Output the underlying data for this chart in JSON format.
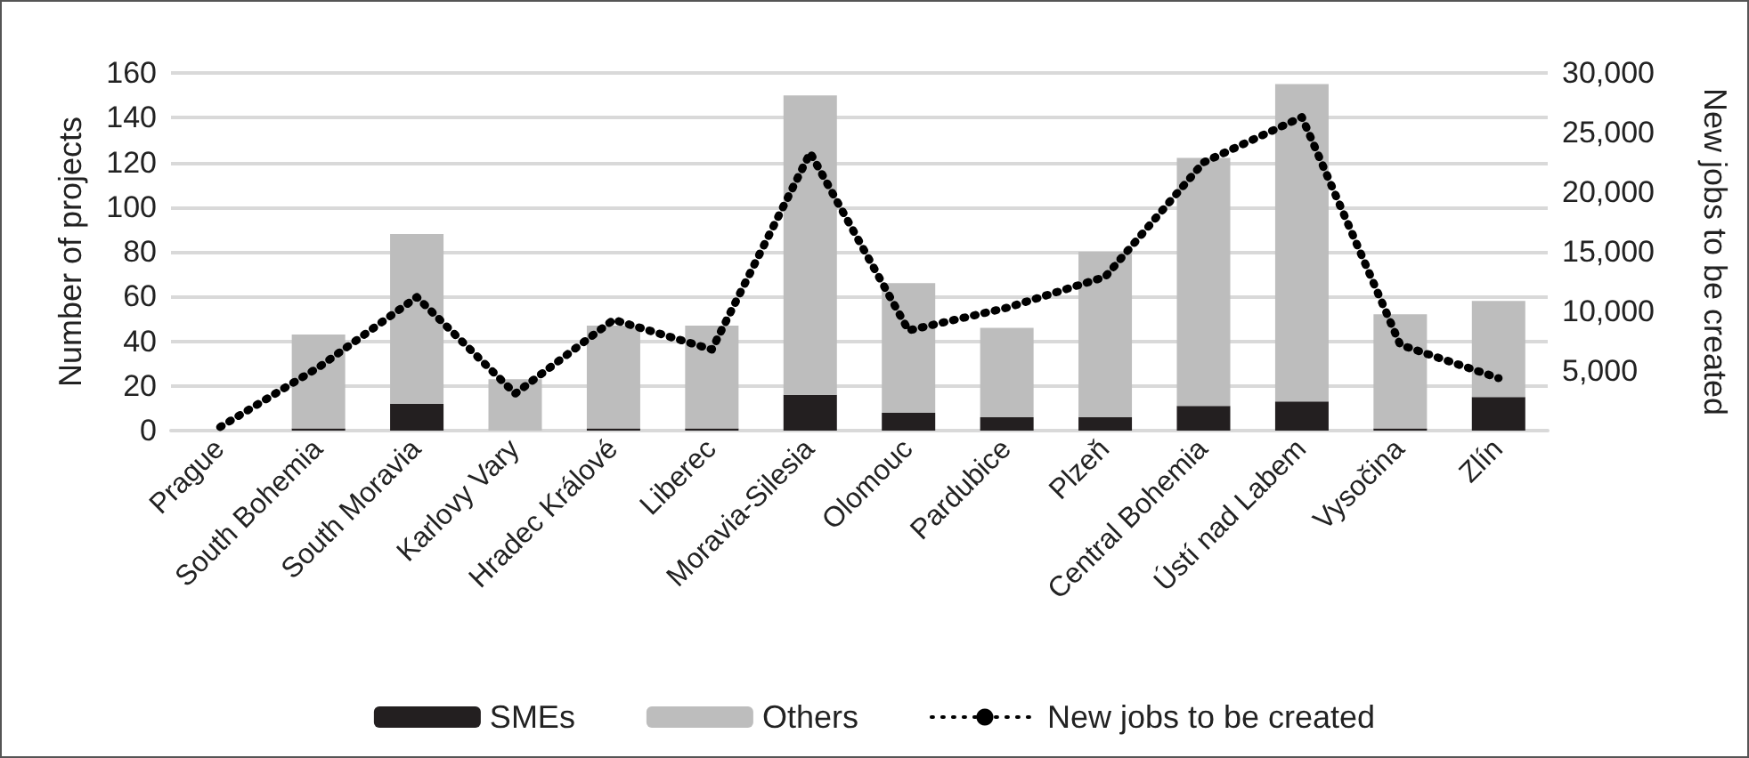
{
  "chart_data": {
    "type": "bar",
    "stacked": true,
    "ylabel": "Number of projects",
    "y2label": "New jobs to be created",
    "categories": [
      "Prague",
      "South Bohemia",
      "South Moravia",
      "Karlovy Vary",
      "Hradec Králové",
      "Liberec",
      "Moravia-Silesia",
      "Olomouc",
      "Pardubice",
      "Plzeň",
      "Central Bohemia",
      "Ústí nad Labem",
      "Vysočina",
      "Zlín"
    ],
    "series": [
      {
        "name": "SMEs",
        "color": "#231f20",
        "values": [
          0,
          1,
          12,
          0,
          1,
          1,
          16,
          8,
          6,
          6,
          11,
          13,
          1,
          15
        ]
      },
      {
        "name": "Others",
        "color": "#bdbdbd",
        "values": [
          null,
          42,
          76,
          23,
          46,
          46,
          134,
          58,
          40,
          74,
          111,
          142,
          51,
          43
        ]
      },
      {
        "name": "New jobs to be created",
        "type": "line",
        "axis": "y2",
        "color": "#000000",
        "line_style": "dotted",
        "marker": "none",
        "values": [
          300,
          5300,
          11200,
          3100,
          9300,
          6800,
          23300,
          8400,
          10300,
          12900,
          22500,
          26300,
          7200,
          4400
        ]
      }
    ],
    "ylim": [
      0,
      160
    ],
    "yticks": [
      0,
      20,
      40,
      60,
      80,
      100,
      120,
      140,
      160
    ],
    "y2lim": [
      0,
      30000
    ],
    "y2ticks": [
      {
        "value": 0,
        "label": null
      },
      {
        "value": 5000,
        "label": "5,000"
      },
      {
        "value": 10000,
        "label": "10,000"
      },
      {
        "value": 15000,
        "label": "15,000"
      },
      {
        "value": 20000,
        "label": "20,000"
      },
      {
        "value": 25000,
        "label": "25,000"
      },
      {
        "value": 30000,
        "label": "30,000"
      }
    ],
    "grid": "y",
    "legend": "bottom"
  }
}
